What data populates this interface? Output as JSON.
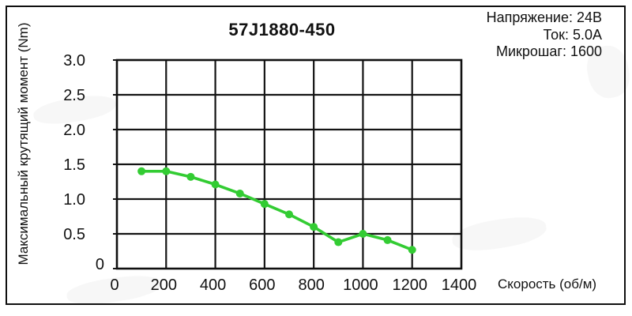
{
  "chart_data": {
    "type": "line",
    "title": "57J1880-450",
    "xlabel": "Скорость (об/м)",
    "ylabel": "Максимальный крутящий момент (Nm)",
    "xlim": [
      0,
      1400
    ],
    "ylim": [
      0,
      3.0
    ],
    "x_ticks": [
      0,
      200,
      400,
      600,
      800,
      1000,
      1200,
      1400
    ],
    "y_ticks": [
      0,
      0.5,
      1.0,
      1.5,
      2.0,
      2.5,
      3.0
    ],
    "grid": true,
    "legend": "none",
    "series": [
      {
        "name": "max-torque",
        "color": "#33cc33",
        "x": [
          100,
          200,
          300,
          400,
          500,
          600,
          700,
          800,
          900,
          1000,
          1100,
          1200
        ],
        "y": [
          1.4,
          1.4,
          1.32,
          1.21,
          1.08,
          0.93,
          0.78,
          0.6,
          0.38,
          0.5,
          0.41,
          0.27
        ]
      }
    ]
  },
  "info": {
    "lines": [
      "Напряжение: 24В",
      "Ток: 5.0А",
      "Микрошаг: 1600"
    ]
  },
  "colors": {
    "curve": "#33cc33",
    "grid": "#141414",
    "frame": "#101010",
    "background": "#ffffff"
  }
}
